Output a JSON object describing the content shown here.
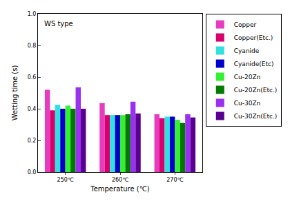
{
  "chart_data": {
    "type": "bar",
    "xlabel": "Temperature (℃)",
    "ylabel": "Wetting time (s)",
    "annotations": [
      {
        "text": "WS type"
      }
    ],
    "categories": [
      "250℃",
      "260℃",
      "270℃"
    ],
    "series": [
      {
        "name": "Copper",
        "color": "#e83cc0",
        "values": [
          0.52,
          0.435,
          0.365
        ]
      },
      {
        "name": "Copper(Etc.)",
        "color": "#d8006c",
        "values": [
          0.39,
          0.36,
          0.34
        ]
      },
      {
        "name": "Cyanide",
        "color": "#33e0e0",
        "values": [
          0.425,
          0.36,
          0.35
        ]
      },
      {
        "name": "Cyanide(Etc)",
        "color": "#0000c8",
        "values": [
          0.4,
          0.36,
          0.35
        ]
      },
      {
        "name": "Cu-20Zn",
        "color": "#33f033",
        "values": [
          0.42,
          0.36,
          0.33
        ]
      },
      {
        "name": "Cu-20Zn(Etc.)",
        "color": "#007a00",
        "values": [
          0.4,
          0.365,
          0.31
        ]
      },
      {
        "name": "Cu-30Zn",
        "color": "#9a30f0",
        "values": [
          0.535,
          0.445,
          0.365
        ]
      },
      {
        "name": "Cu-30Zn(Etc.)",
        "color": "#5a0090",
        "values": [
          0.4,
          0.37,
          0.345
        ]
      }
    ],
    "ylim": [
      0,
      1
    ],
    "yticks": [
      {
        "value": 0,
        "label": "0.0"
      },
      0.2,
      0.4,
      0.6,
      0.8,
      {
        "value": 1,
        "label": "1.0"
      }
    ],
    "legend": "right",
    "grid": false
  }
}
